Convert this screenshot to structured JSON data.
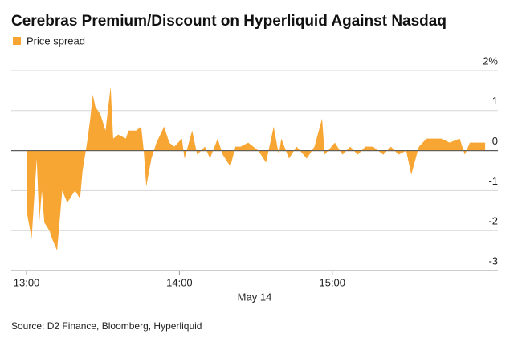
{
  "chart_data": {
    "type": "area",
    "title": "Cerebras Premium/Discount on Hyperliquid Against Nasdaq",
    "source": "Source: D2 Finance, Bloomberg, Hyperliquid",
    "x_label": "May 14",
    "series": [
      {
        "name": "Price spread",
        "color": "#f7a533",
        "x": [
          "13:00",
          "13:02",
          "13:04",
          "13:05",
          "13:06",
          "13:07",
          "13:09",
          "13:10",
          "13:12",
          "13:14",
          "13:16",
          "13:19",
          "13:21",
          "13:22",
          "13:24",
          "13:25",
          "13:26",
          "13:27",
          "13:29",
          "13:31",
          "13:33",
          "13:34",
          "13:36",
          "13:39",
          "13:40",
          "13:43",
          "13:45",
          "13:46",
          "13:47",
          "13:49",
          "13:51",
          "13:54",
          "13:56",
          "13:58",
          "14:01",
          "14:02",
          "14:05",
          "14:07",
          "14:10",
          "14:12",
          "14:15",
          "14:17",
          "14:20",
          "14:22",
          "14:24",
          "14:27",
          "14:31",
          "14:34",
          "14:37",
          "14:39",
          "14:40",
          "14:43",
          "14:46",
          "14:50",
          "14:53",
          "14:56",
          "14:57",
          "15:01",
          "15:04",
          "15:07",
          "15:10",
          "15:13",
          "15:16",
          "15:20",
          "15:23",
          "15:26",
          "15:29",
          "15:31",
          "15:34",
          "15:37",
          "15:40",
          "15:43",
          "15:46",
          "15:50",
          "15:52",
          "15:54",
          "15:57",
          "16:00"
        ],
        "values": [
          -1.5,
          -2.2,
          -0.2,
          -1.8,
          -1.0,
          -1.8,
          -2.0,
          -2.2,
          -2.5,
          -1.0,
          -1.3,
          -1.0,
          -1.2,
          -0.5,
          0.3,
          0.8,
          1.4,
          1.1,
          0.9,
          0.5,
          1.6,
          0.3,
          0.4,
          0.3,
          0.5,
          0.5,
          0.6,
          0,
          -0.9,
          -0.2,
          0.2,
          0.6,
          0.2,
          0.1,
          0.3,
          -0.2,
          0.5,
          -0.1,
          0.1,
          -0.2,
          0.3,
          -0.1,
          -0.4,
          0.1,
          0.1,
          0.2,
          0,
          -0.3,
          0.6,
          -0.1,
          0.3,
          -0.2,
          0.1,
          -0.2,
          0.1,
          0.8,
          -0.1,
          0.2,
          -0.1,
          0.1,
          -0.1,
          0.1,
          0.1,
          -0.1,
          0.1,
          -0.1,
          0,
          -0.6,
          0.1,
          0.3,
          0.3,
          0.3,
          0.2,
          0.3,
          -0.1,
          0.2,
          0.2,
          0.2
        ]
      }
    ],
    "xlim": [
      "12:54",
      "16:05"
    ],
    "xticks": [
      "13:00",
      "14:00",
      "15:00"
    ],
    "ylim": [
      -3,
      2
    ],
    "yticks": [
      {
        "value": 2,
        "label": "2%"
      },
      1,
      0,
      -1,
      -2,
      -3
    ],
    "grid": true
  }
}
